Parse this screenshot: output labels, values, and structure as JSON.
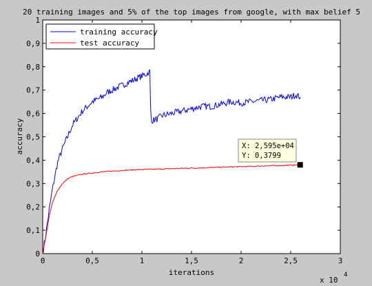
{
  "chart_data": {
    "type": "line",
    "title": "20 training images and 5% of the top images from google, with max belief 5",
    "xlabel": "iterations",
    "ylabel": "accuracy",
    "x_exponent_label": "x 10",
    "x_exponent_power": "4",
    "xlim": [
      0,
      30000
    ],
    "ylim": [
      0,
      1
    ],
    "x_ticks": [
      0,
      5000,
      10000,
      15000,
      20000,
      25000,
      30000
    ],
    "x_tick_labels": [
      "0",
      "0,5",
      "1",
      "1,5",
      "2",
      "2,5",
      "3"
    ],
    "y_ticks": [
      0,
      0.1,
      0.2,
      0.3,
      0.4,
      0.5,
      0.6,
      0.7,
      0.8,
      0.9,
      1
    ],
    "y_tick_labels": [
      "0",
      "0,1",
      "0,2",
      "0,3",
      "0,4",
      "0,5",
      "0,6",
      "0,7",
      "0,8",
      "0,9",
      "1"
    ],
    "grid": false,
    "legend_position": "top-left",
    "series": [
      {
        "name": "training accuracy",
        "color": "#0000ff",
        "x": [
          0,
          300,
          700,
          1000,
          1500,
          2000,
          2500,
          3000,
          3500,
          4000,
          4500,
          5000,
          5500,
          6000,
          6500,
          7000,
          7500,
          8000,
          8500,
          9000,
          9500,
          10000,
          10500,
          10800,
          10900,
          11000,
          11500,
          12000,
          13000,
          14000,
          15000,
          16000,
          17000,
          18000,
          19000,
          20000,
          21000,
          22000,
          23000,
          24000,
          25000,
          25500,
          25950
        ],
        "values": [
          0,
          0.08,
          0.2,
          0.28,
          0.39,
          0.45,
          0.5,
          0.55,
          0.58,
          0.61,
          0.63,
          0.65,
          0.66,
          0.67,
          0.69,
          0.7,
          0.71,
          0.72,
          0.73,
          0.74,
          0.75,
          0.76,
          0.77,
          0.78,
          0.57,
          0.57,
          0.575,
          0.59,
          0.6,
          0.61,
          0.62,
          0.63,
          0.63,
          0.64,
          0.65,
          0.645,
          0.65,
          0.655,
          0.66,
          0.67,
          0.67,
          0.68,
          0.67
        ]
      },
      {
        "name": "test accuracy",
        "color": "#ff0000",
        "x": [
          0,
          300,
          700,
          1000,
          1500,
          2000,
          2500,
          3000,
          4000,
          5000,
          6000,
          7000,
          8000,
          9000,
          10000,
          12000,
          14000,
          16000,
          18000,
          20000,
          22000,
          24000,
          25950
        ],
        "values": [
          0,
          0.07,
          0.17,
          0.22,
          0.27,
          0.3,
          0.32,
          0.33,
          0.34,
          0.345,
          0.35,
          0.353,
          0.356,
          0.358,
          0.36,
          0.362,
          0.365,
          0.367,
          0.37,
          0.372,
          0.375,
          0.377,
          0.38
        ]
      }
    ],
    "annotation": {
      "x": 25950,
      "y": 0.3799,
      "x_text": "X: 2,595e+04",
      "y_text": "Y: 0,3799"
    }
  }
}
